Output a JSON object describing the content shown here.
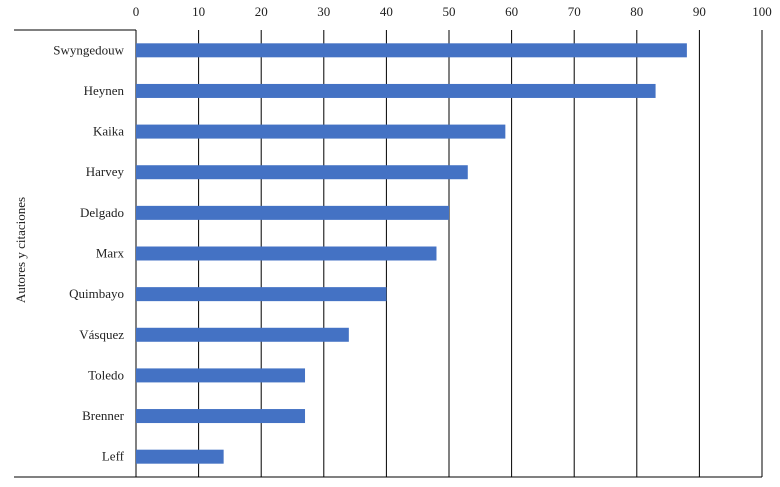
{
  "chart_data": {
    "type": "bar",
    "orientation": "horizontal",
    "title": "",
    "xlabel": "",
    "ylabel": "Autores y citaciones",
    "xlim": [
      0,
      100
    ],
    "xticks": [
      0,
      10,
      20,
      30,
      40,
      50,
      60,
      70,
      80,
      90,
      100
    ],
    "xaxis_position": "top",
    "grid": "vertical",
    "categories": [
      "Swyngedouw",
      "Heynen",
      "Kaika",
      "Harvey",
      "Delgado",
      "Marx",
      "Quimbayo",
      "Vásquez",
      "Toledo",
      "Brenner",
      "Leff"
    ],
    "values": [
      88,
      83,
      59,
      53,
      50,
      48,
      40,
      34,
      27,
      27,
      14
    ],
    "bar_color": "#4472c4"
  }
}
